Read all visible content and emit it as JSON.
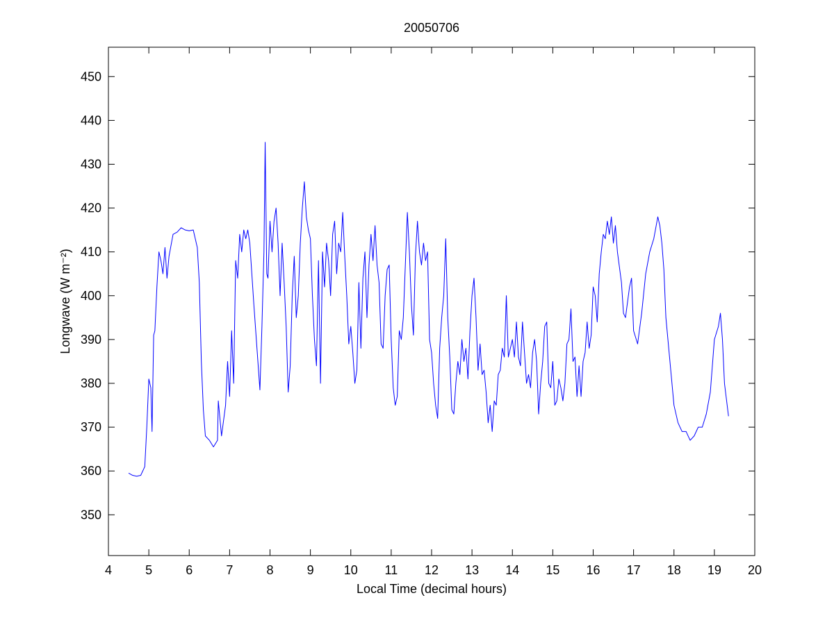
{
  "chart_data": {
    "type": "line",
    "title": "20050706",
    "x_label": "Local Time (decimal hours)",
    "y_label": "Longwave (W m⁻²)",
    "xlim": [
      4,
      20
    ],
    "xticks": [
      4,
      5,
      6,
      7,
      8,
      9,
      10,
      11,
      12,
      13,
      14,
      15,
      16,
      17,
      18,
      19,
      20
    ],
    "ylim": [
      340.7,
      456.7
    ],
    "yticks": [
      350,
      360,
      370,
      380,
      390,
      400,
      410,
      420,
      430,
      440,
      450
    ],
    "grid": false,
    "series": [
      {
        "color": "#0000ff",
        "x": [
          4.5,
          4.6,
          4.7,
          4.8,
          4.9,
          4.95,
          5.0,
          5.05,
          5.08,
          5.12,
          5.15,
          5.2,
          5.25,
          5.3,
          5.35,
          5.4,
          5.45,
          5.5,
          5.6,
          5.7,
          5.8,
          5.9,
          6.0,
          6.1,
          6.2,
          6.25,
          6.3,
          6.35,
          6.4,
          6.5,
          6.6,
          6.7,
          6.72,
          6.8,
          6.9,
          6.95,
          7.0,
          7.05,
          7.1,
          7.15,
          7.2,
          7.25,
          7.3,
          7.35,
          7.4,
          7.45,
          7.5,
          7.6,
          7.7,
          7.75,
          7.8,
          7.85,
          7.88,
          7.92,
          7.95,
          8.0,
          8.05,
          8.1,
          8.15,
          8.2,
          8.25,
          8.3,
          8.35,
          8.4,
          8.45,
          8.5,
          8.55,
          8.6,
          8.65,
          8.7,
          8.75,
          8.8,
          8.85,
          8.9,
          8.95,
          9.0,
          9.05,
          9.1,
          9.15,
          9.2,
          9.25,
          9.3,
          9.35,
          9.4,
          9.45,
          9.5,
          9.55,
          9.6,
          9.65,
          9.7,
          9.75,
          9.8,
          9.85,
          9.9,
          9.95,
          10.0,
          10.05,
          10.1,
          10.15,
          10.2,
          10.25,
          10.3,
          10.35,
          10.4,
          10.45,
          10.5,
          10.55,
          10.6,
          10.65,
          10.7,
          10.75,
          10.8,
          10.85,
          10.9,
          10.95,
          11.0,
          11.05,
          11.1,
          11.15,
          11.2,
          11.25,
          11.3,
          11.35,
          11.4,
          11.45,
          11.5,
          11.55,
          11.6,
          11.65,
          11.7,
          11.75,
          11.8,
          11.85,
          11.9,
          11.95,
          12.0,
          12.05,
          12.1,
          12.15,
          12.2,
          12.25,
          12.3,
          12.35,
          12.4,
          12.45,
          12.5,
          12.55,
          12.6,
          12.65,
          12.7,
          12.75,
          12.8,
          12.85,
          12.9,
          12.95,
          13.0,
          13.05,
          13.1,
          13.15,
          13.2,
          13.25,
          13.3,
          13.35,
          13.4,
          13.45,
          13.5,
          13.55,
          13.6,
          13.65,
          13.7,
          13.75,
          13.8,
          13.85,
          13.9,
          13.95,
          14.0,
          14.05,
          14.1,
          14.15,
          14.2,
          14.25,
          14.3,
          14.35,
          14.4,
          14.45,
          14.5,
          14.55,
          14.6,
          14.65,
          14.7,
          14.75,
          14.8,
          14.85,
          14.9,
          14.95,
          15.0,
          15.05,
          15.1,
          15.15,
          15.2,
          15.25,
          15.3,
          15.35,
          15.4,
          15.45,
          15.5,
          15.55,
          15.6,
          15.65,
          15.7,
          15.75,
          15.8,
          15.85,
          15.9,
          15.95,
          16.0,
          16.05,
          16.1,
          16.15,
          16.2,
          16.25,
          16.3,
          16.35,
          16.4,
          16.45,
          16.5,
          16.55,
          16.6,
          16.7,
          16.75,
          16.8,
          16.9,
          16.95,
          17.0,
          17.1,
          17.2,
          17.3,
          17.4,
          17.5,
          17.6,
          17.65,
          17.7,
          17.75,
          17.8,
          17.9,
          18.0,
          18.1,
          18.2,
          18.3,
          18.4,
          18.5,
          18.6,
          18.7,
          18.8,
          18.9,
          19.0,
          19.1,
          19.15,
          19.2,
          19.25,
          19.35
        ],
        "values": [
          359.5,
          359,
          358.8,
          359,
          361,
          370,
          381,
          379,
          369,
          391,
          392,
          402,
          410,
          408,
          405,
          411,
          404,
          409,
          414,
          414.5,
          415.5,
          415,
          414.8,
          415,
          411,
          403,
          385,
          374,
          368,
          367,
          365.5,
          367,
          376,
          368,
          375,
          385,
          377,
          392,
          380,
          408,
          404,
          414,
          410,
          415,
          413,
          415,
          412,
          398,
          385,
          378.5,
          393,
          410,
          435,
          405,
          404,
          417,
          410,
          417,
          420,
          412,
          400,
          412,
          403,
          393,
          378,
          384,
          400,
          409,
          395,
          400,
          412,
          420,
          426,
          418,
          415,
          413,
          400,
          390,
          384,
          408,
          380,
          410,
          402,
          412,
          408,
          400,
          414,
          417,
          405,
          412,
          410,
          419,
          409,
          400,
          389,
          393,
          387,
          380,
          383,
          403,
          388,
          404,
          410,
          395,
          407,
          414,
          408,
          416,
          407,
          403,
          389,
          388,
          400,
          406,
          407,
          390,
          379,
          375,
          377,
          392,
          390,
          395,
          407,
          419,
          410,
          398,
          391,
          409,
          417,
          410,
          407,
          412,
          408,
          410,
          390,
          387,
          380,
          375,
          372,
          388,
          395,
          400,
          413,
          395,
          386,
          374,
          373,
          380,
          385,
          382,
          390,
          385,
          388,
          381,
          392,
          400,
          404,
          395,
          383,
          389,
          382,
          383,
          378,
          371,
          375,
          369,
          376,
          375,
          382,
          383,
          388,
          386,
          400,
          386,
          388,
          390,
          386,
          394,
          386,
          384,
          394,
          387,
          380,
          382,
          379,
          387,
          390,
          385,
          373,
          380,
          385,
          393,
          394,
          380,
          379,
          385,
          375,
          376,
          381,
          379,
          376,
          380,
          389,
          390,
          397,
          385,
          386,
          377,
          384,
          377,
          385,
          387,
          394,
          388,
          391,
          402,
          400,
          394,
          405,
          410,
          414,
          413,
          417,
          414,
          418,
          412,
          416,
          410,
          403,
          396,
          395,
          402,
          404,
          392,
          389,
          396,
          405,
          410,
          413,
          418,
          416,
          412,
          406,
          395,
          385,
          375,
          371,
          369,
          369,
          367,
          368,
          370,
          370,
          373,
          378,
          390,
          393,
          396,
          390,
          380,
          372.5
        ]
      }
    ]
  }
}
